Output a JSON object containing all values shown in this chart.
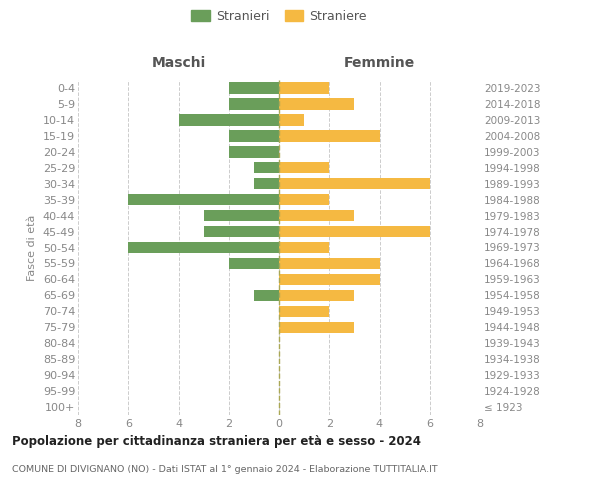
{
  "age_groups": [
    "100+",
    "95-99",
    "90-94",
    "85-89",
    "80-84",
    "75-79",
    "70-74",
    "65-69",
    "60-64",
    "55-59",
    "50-54",
    "45-49",
    "40-44",
    "35-39",
    "30-34",
    "25-29",
    "20-24",
    "15-19",
    "10-14",
    "5-9",
    "0-4"
  ],
  "birth_years": [
    "≤ 1923",
    "1924-1928",
    "1929-1933",
    "1934-1938",
    "1939-1943",
    "1944-1948",
    "1949-1953",
    "1954-1958",
    "1959-1963",
    "1964-1968",
    "1969-1973",
    "1974-1978",
    "1979-1983",
    "1984-1988",
    "1989-1993",
    "1994-1998",
    "1999-2003",
    "2004-2008",
    "2009-2013",
    "2014-2018",
    "2019-2023"
  ],
  "males": [
    0,
    0,
    0,
    0,
    0,
    0,
    0,
    1,
    0,
    2,
    6,
    3,
    3,
    6,
    1,
    1,
    2,
    2,
    4,
    2,
    2
  ],
  "females": [
    0,
    0,
    0,
    0,
    0,
    3,
    2,
    3,
    4,
    4,
    2,
    6,
    3,
    2,
    6,
    2,
    0,
    4,
    1,
    3,
    2
  ],
  "male_color": "#6a9e5a",
  "female_color": "#f5b942",
  "grid_color": "#cccccc",
  "title": "Popolazione per cittadinanza straniera per età e sesso - 2024",
  "subtitle": "COMUNE DI DIVIGNANO (NO) - Dati ISTAT al 1° gennaio 2024 - Elaborazione TUTTITALIA.IT",
  "xlabel_left": "Maschi",
  "xlabel_right": "Femmine",
  "ylabel_left": "Fasce di età",
  "legend_male": "Stranieri",
  "legend_female": "Straniere",
  "xlim": 8,
  "background_color": "#ffffff"
}
